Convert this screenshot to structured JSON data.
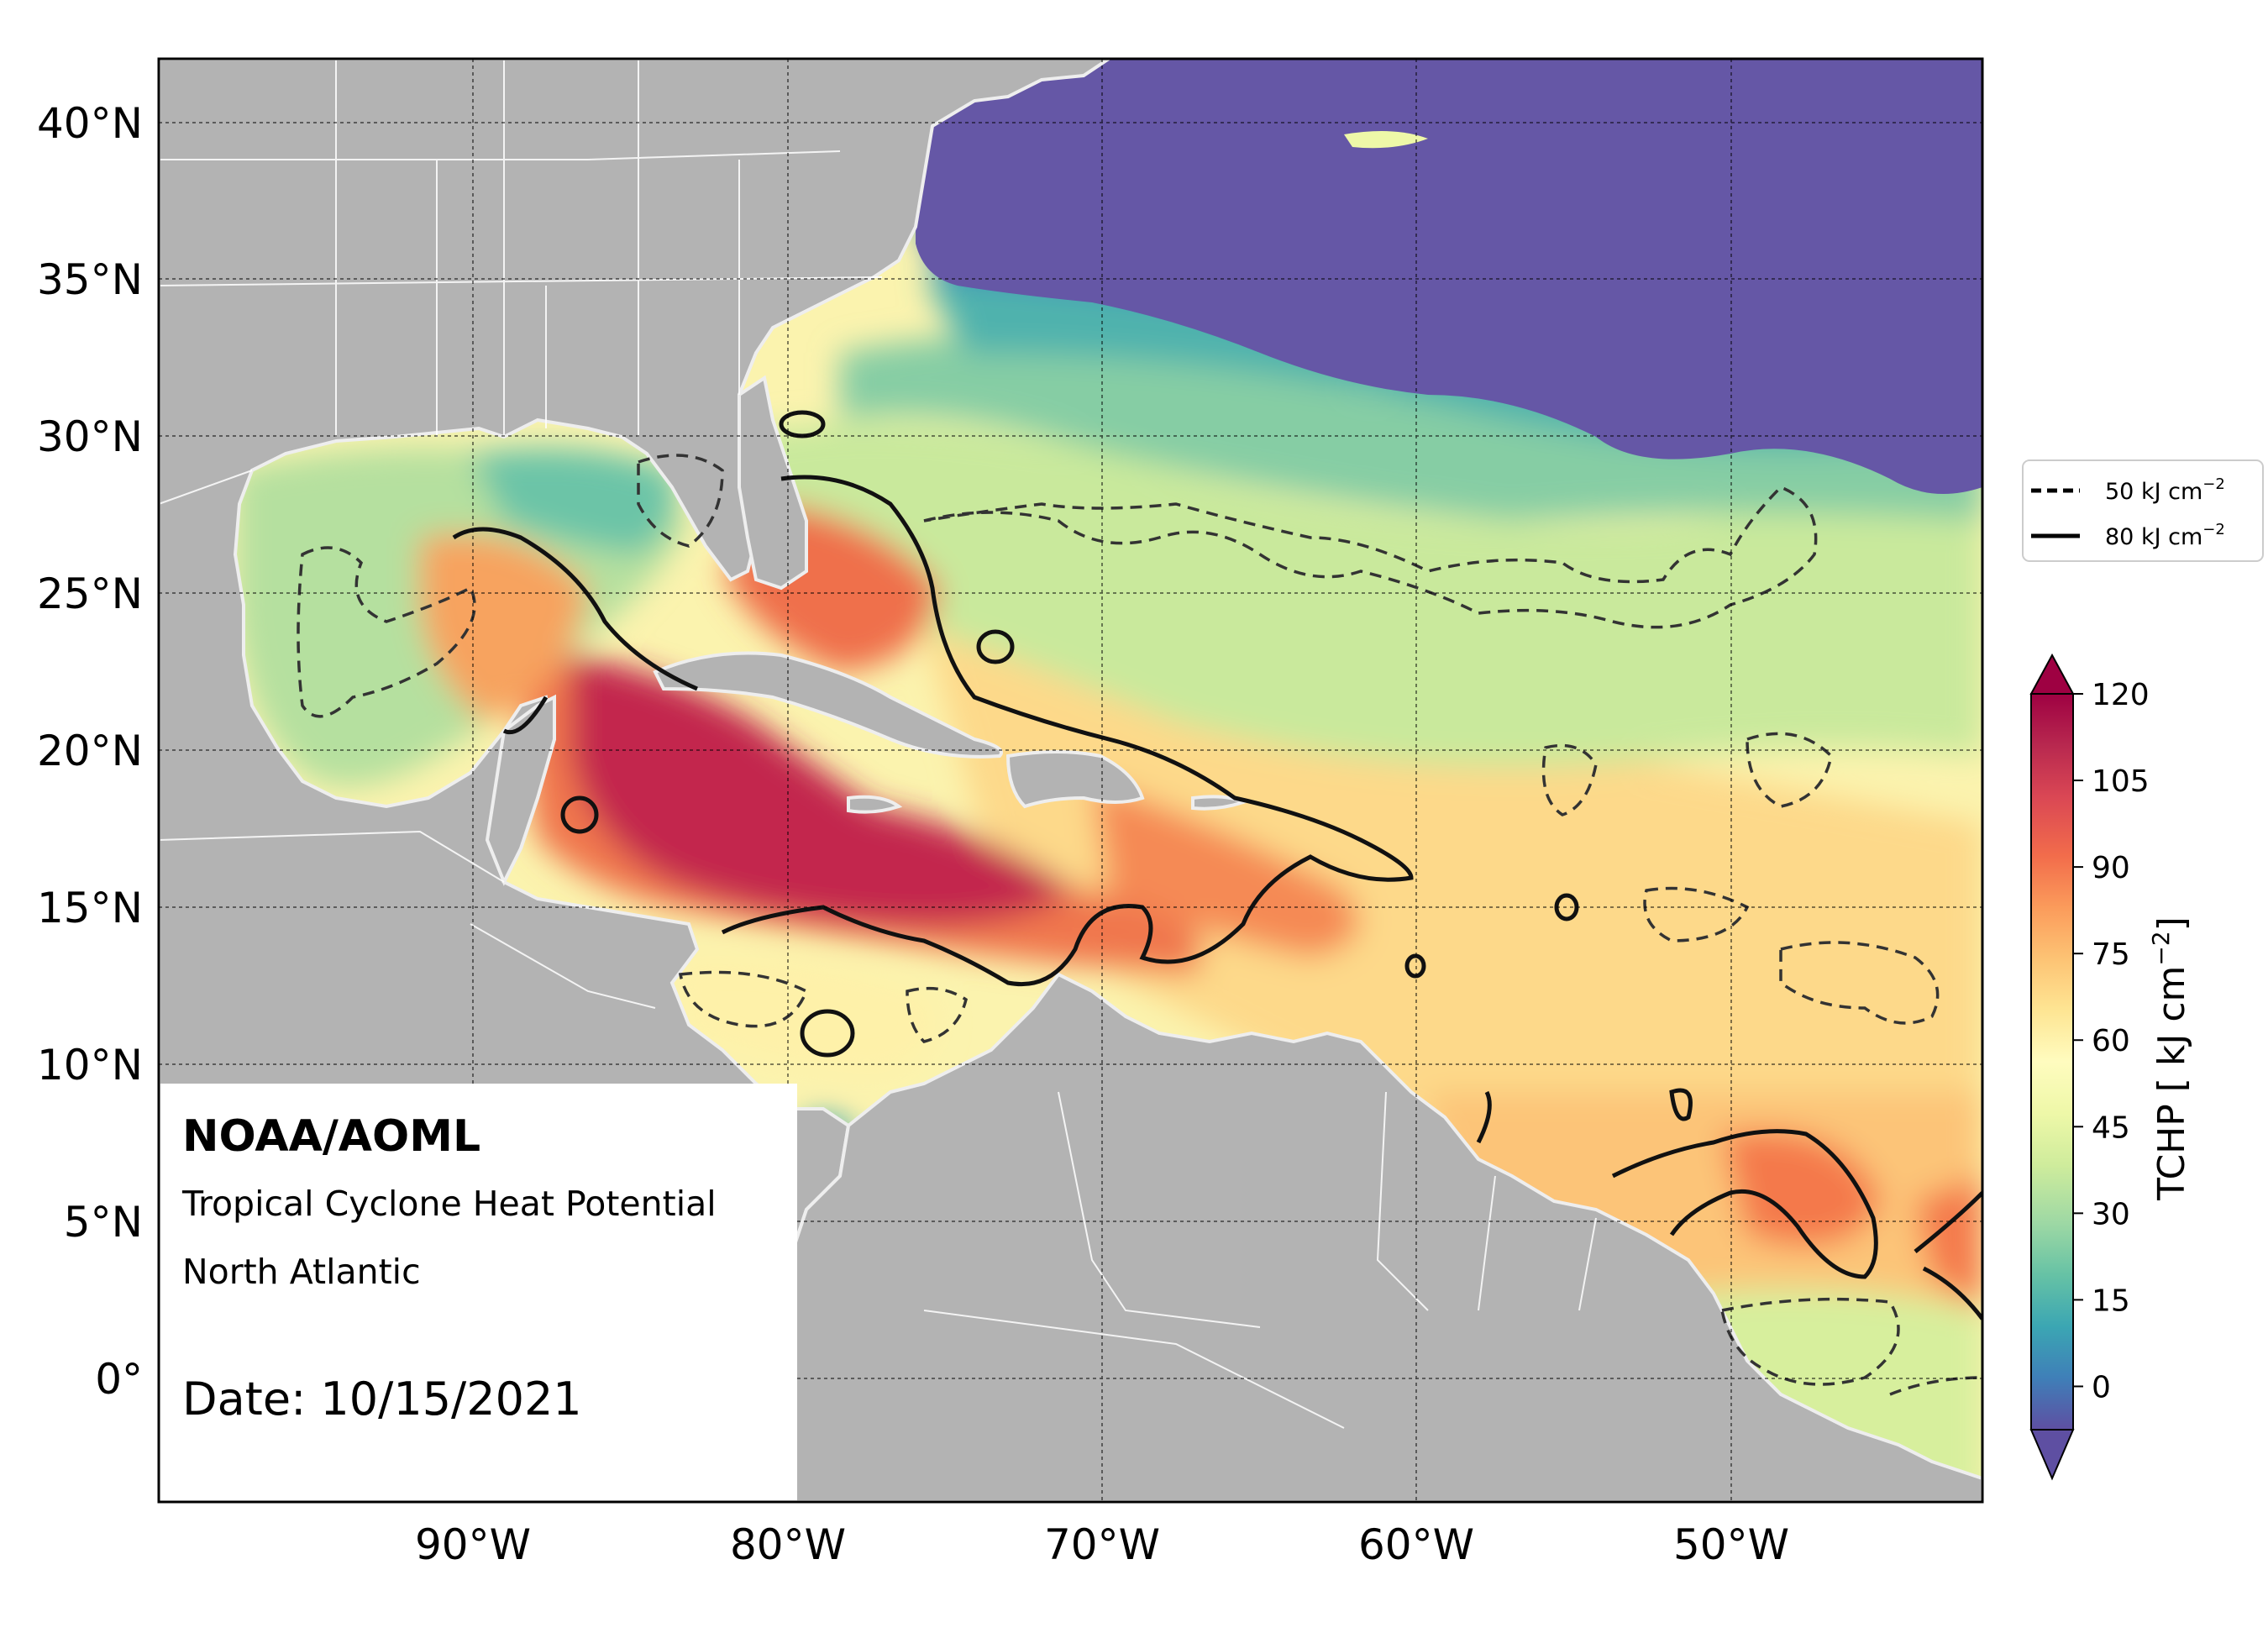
{
  "map": {
    "latitude_labels": [
      "40°N",
      "35°N",
      "30°N",
      "25°N",
      "20°N",
      "15°N",
      "10°N",
      "5°N",
      "0°"
    ],
    "longitude_labels": [
      "90°W",
      "80°W",
      "70°W",
      "60°W",
      "50°W"
    ],
    "latitude_values": [
      40,
      35,
      30,
      25,
      20,
      15,
      10,
      5,
      0
    ],
    "longitude_values": [
      -90,
      -80,
      -70,
      -60,
      -50
    ],
    "extent": {
      "lon_min": -100,
      "lon_max": -42,
      "lat_min": -4,
      "lat_max": 42
    },
    "variable": "Tropical Cyclone Heat Potential",
    "land_color": "#b3b3b3",
    "border_color": "#ffffff"
  },
  "annotation": {
    "organization": "NOAA/AOML",
    "product": "Tropical Cyclone Heat Potential",
    "region": "North Atlantic",
    "date_text": "Date: 10/15/2021"
  },
  "legend": {
    "entries": [
      {
        "label": "50 kJ cm",
        "sup": "−2",
        "style": "dashed"
      },
      {
        "label": "80 kJ cm",
        "sup": "−2",
        "style": "solid"
      }
    ]
  },
  "colorbar": {
    "label": "TCHP [ kJ cm",
    "label_sup": "−2",
    "label_end": "]",
    "ticks": [
      "120",
      "105",
      "90",
      "75",
      "60",
      "45",
      "30",
      "15",
      "0"
    ],
    "tick_values": [
      120,
      105,
      90,
      75,
      60,
      45,
      30,
      15,
      0
    ],
    "min": -7.5,
    "max": 120,
    "extend": "both",
    "colors": [
      "#5e4fa2",
      "#3f7fb8",
      "#3ba6b3",
      "#66c2a5",
      "#9dd8a4",
      "#cfec9c",
      "#eef8a8",
      "#fffcbf",
      "#fee593",
      "#fdc374",
      "#fb9b5b",
      "#f26c4b",
      "#da4754",
      "#b8284f",
      "#9e0142"
    ]
  }
}
